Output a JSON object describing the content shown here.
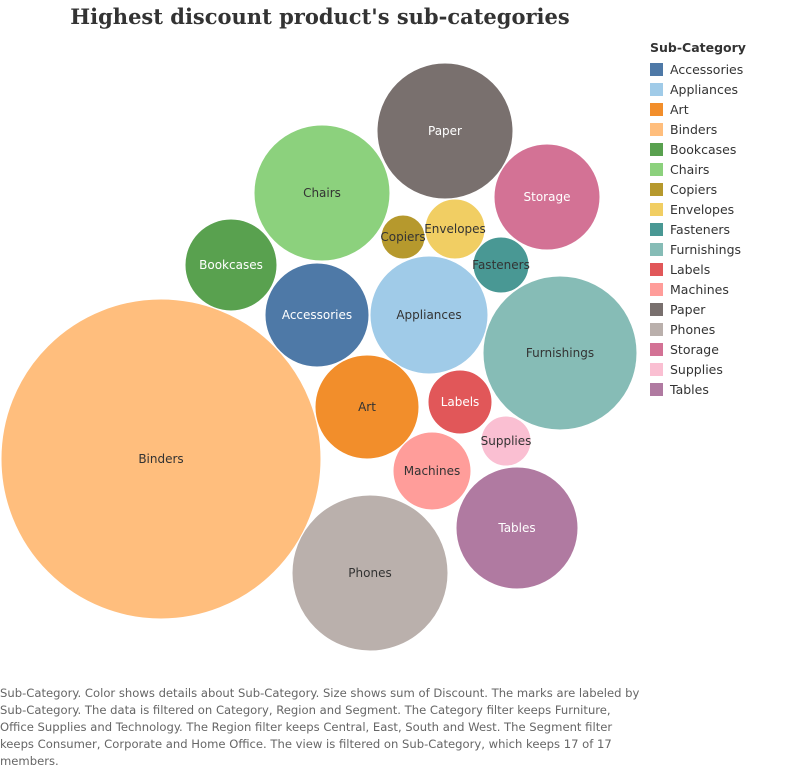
{
  "chart_data": {
    "type": "packed-bubble",
    "title": "Highest discount product's sub-categories",
    "legend_title": "Sub-Category",
    "legend_position": "right",
    "measure": "Sum of Discount",
    "bubbles": [
      {
        "name": "Accessories",
        "color": "#4e79a7",
        "label_color": "#ffffff"
      },
      {
        "name": "Appliances",
        "color": "#a0cbe8",
        "label_color": "#333333"
      },
      {
        "name": "Art",
        "color": "#f28e2b",
        "label_color": "#333333"
      },
      {
        "name": "Binders",
        "color": "#ffbe7d",
        "label_color": "#333333"
      },
      {
        "name": "Bookcases",
        "color": "#59a14f",
        "label_color": "#ffffff"
      },
      {
        "name": "Chairs",
        "color": "#8cd17d",
        "label_color": "#333333"
      },
      {
        "name": "Copiers",
        "color": "#b6992d",
        "label_color": "#333333"
      },
      {
        "name": "Envelopes",
        "color": "#f1ce63",
        "label_color": "#333333"
      },
      {
        "name": "Fasteners",
        "color": "#499894",
        "label_color": "#333333"
      },
      {
        "name": "Furnishings",
        "color": "#86bcb6",
        "label_color": "#333333"
      },
      {
        "name": "Labels",
        "color": "#e15759",
        "label_color": "#ffffff"
      },
      {
        "name": "Machines",
        "color": "#ff9d9a",
        "label_color": "#333333"
      },
      {
        "name": "Paper",
        "color": "#79706e",
        "label_color": "#ffffff"
      },
      {
        "name": "Phones",
        "color": "#bab0ac",
        "label_color": "#333333"
      },
      {
        "name": "Storage",
        "color": "#d37295",
        "label_color": "#ffffff"
      },
      {
        "name": "Supplies",
        "color": "#fabfd2",
        "label_color": "#333333"
      },
      {
        "name": "Tables",
        "color": "#b07aa1",
        "label_color": "#ffffff"
      }
    ]
  },
  "caption": "Sub-Category.  Color shows details about Sub-Category.  Size shows sum of Discount.  The marks are labeled by Sub-Category. The data is filtered on Category, Region and Segment. The Category filter keeps Furniture, Office Supplies and Technology. The Region filter keeps Central, East, South and West. The Segment filter keeps Consumer, Corporate and Home Office. The view is filtered on Sub-Category, which keeps 17 of 17 members."
}
